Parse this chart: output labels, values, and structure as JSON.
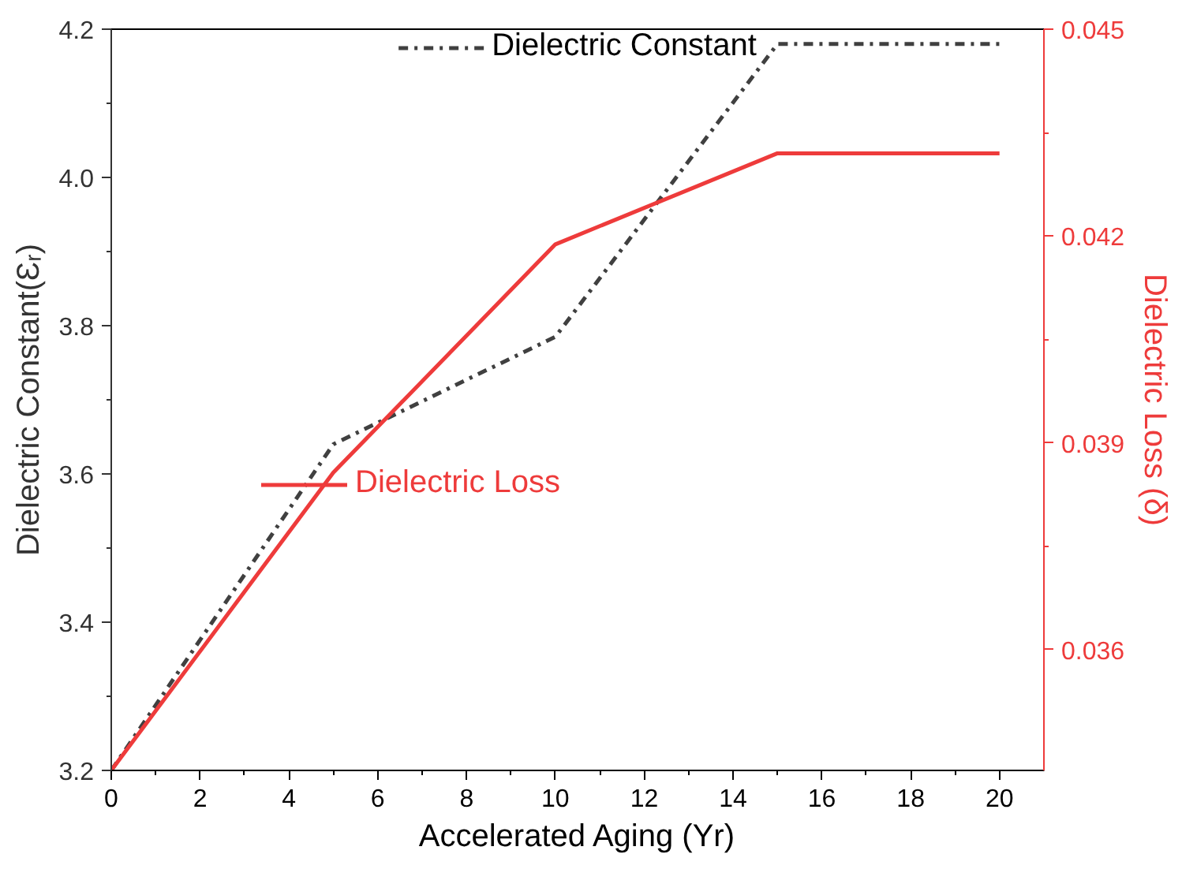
{
  "chart_data": {
    "type": "line",
    "xlabel": "Accelerated Aging (Yr)",
    "ylabel": "Dielectric Constant(Ɛᵣ)",
    "y2label": "Dielectric Loss (δ)",
    "x": [
      0,
      5,
      10,
      15,
      20
    ],
    "series": [
      {
        "name": "Dielectric Constant",
        "color": "#404040",
        "line_style": "dashdot",
        "values": [
          3.2,
          3.64,
          3.785,
          4.18,
          4.18
        ]
      },
      {
        "name": "Dielectric Loss",
        "color": "#ee3b3b",
        "axis": "y2",
        "line_style": "solid",
        "values": [
          0.03425,
          0.03857,
          0.04188,
          0.0432,
          0.0432
        ]
      }
    ],
    "xlim": [
      0,
      21
    ],
    "xticks": [
      0,
      2,
      4,
      6,
      8,
      10,
      12,
      14,
      16,
      18,
      20
    ],
    "ylim": [
      3.2,
      4.2
    ],
    "yticks": [
      {
        "value": 3.2,
        "label": "3.2"
      },
      {
        "value": 3.4,
        "label": "3.4"
      },
      {
        "value": 3.6,
        "label": "3.6"
      },
      {
        "value": 3.8,
        "label": "3.8"
      },
      {
        "value": 4.0,
        "label": "4.0"
      },
      {
        "value": 4.2,
        "label": "4.2"
      }
    ],
    "y2lim": [
      0.03425,
      0.045
    ],
    "y2ticks": [
      0.036,
      0.039,
      0.042,
      0.045
    ],
    "grid": false,
    "legend": "top",
    "marker": "none"
  }
}
